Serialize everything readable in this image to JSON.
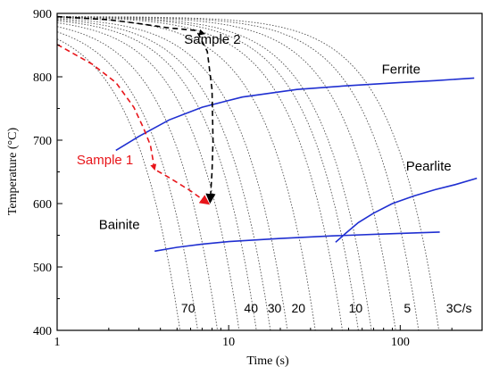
{
  "chart_data": {
    "type": "line",
    "xlabel": "Time (s)",
    "ylabel": "Temperature (°C)",
    "x_scale": "log",
    "xlim": [
      1,
      300
    ],
    "ylim": [
      400,
      900
    ],
    "x_ticks": [
      {
        "value": 1,
        "label": "1"
      },
      {
        "value": 10,
        "label": "10"
      },
      {
        "value": 100,
        "label": "100"
      }
    ],
    "y_ticks": [
      {
        "value": 400,
        "label": "400"
      },
      {
        "value": 500,
        "label": "500"
      },
      {
        "value": 600,
        "label": "600"
      },
      {
        "value": 700,
        "label": "700"
      },
      {
        "value": 800,
        "label": "800"
      },
      {
        "value": 900,
        "label": "900"
      }
    ],
    "transformation_curves": [
      {
        "name": "Ferrite",
        "color": "#1f2fd1",
        "points": [
          [
            2.2,
            684
          ],
          [
            3.0,
            706
          ],
          [
            4.5,
            732
          ],
          [
            7.0,
            752
          ],
          [
            12,
            768
          ],
          [
            25,
            780
          ],
          [
            50,
            786
          ],
          [
            100,
            791
          ],
          [
            160,
            794
          ],
          [
            270,
            798
          ]
        ]
      },
      {
        "name": "Pearlite",
        "color": "#1f2fd1",
        "points": [
          [
            42,
            539
          ],
          [
            48,
            553
          ],
          [
            57,
            570
          ],
          [
            70,
            585
          ],
          [
            90,
            600
          ],
          [
            120,
            612
          ],
          [
            160,
            622
          ],
          [
            210,
            630
          ],
          [
            280,
            640
          ]
        ]
      },
      {
        "name": "Bainite",
        "color": "#1f2fd1",
        "points": [
          [
            3.7,
            525
          ],
          [
            5,
            531
          ],
          [
            7,
            536
          ],
          [
            10,
            540
          ],
          [
            20,
            545
          ],
          [
            40,
            549
          ],
          [
            80,
            552
          ],
          [
            130,
            554
          ],
          [
            170,
            555
          ]
        ]
      }
    ],
    "cooling_curves": {
      "color": "#555555",
      "rate_labels": [
        {
          "text": "70",
          "x": 5.8
        },
        {
          "text": "40",
          "x": 13.5
        },
        {
          "text": "30",
          "x": 18.5
        },
        {
          "text": "20",
          "x": 25.5
        },
        {
          "text": "10",
          "x": 55
        },
        {
          "text": "5",
          "x": 110
        },
        {
          "text": "3C/s",
          "x": 220
        }
      ],
      "curves": [
        {
          "t_end": 5.2
        },
        {
          "t_end": 6.6
        },
        {
          "t_end": 8.6
        },
        {
          "t_end": 11.5
        },
        {
          "t_end": 14.5
        },
        {
          "t_end": 17.5
        },
        {
          "t_end": 22
        },
        {
          "t_end": 32
        },
        {
          "t_end": 46
        },
        {
          "t_end": 57
        },
        {
          "t_end": 68
        },
        {
          "t_end": 94
        },
        {
          "t_end": 128
        },
        {
          "t_end": 168
        }
      ]
    },
    "samples": [
      {
        "name": "Sample 1",
        "color": "#e8151a",
        "points": [
          [
            1.0,
            851
          ],
          [
            1.6,
            820
          ],
          [
            2.2,
            791
          ],
          [
            2.8,
            752
          ],
          [
            3.2,
            718
          ],
          [
            3.5,
            692
          ],
          [
            3.7,
            654
          ],
          [
            4.5,
            641
          ],
          [
            6.0,
            620
          ],
          [
            7.6,
            600
          ]
        ]
      },
      {
        "name": "Sample 2",
        "color": "#000000",
        "points": [
          [
            1.0,
            895
          ],
          [
            2.0,
            890
          ],
          [
            3.0,
            884
          ],
          [
            4.5,
            877
          ],
          [
            6.5,
            873
          ],
          [
            7.5,
            840
          ],
          [
            8.0,
            780
          ],
          [
            8.1,
            700
          ],
          [
            8.0,
            650
          ],
          [
            7.8,
            603
          ]
        ]
      }
    ],
    "annotations": [
      {
        "text": "Sample 2",
        "x": 5.5,
        "y": 852,
        "color": "#000000"
      },
      {
        "text": "Ferrite",
        "x": 78,
        "y": 805,
        "color": "#000000"
      },
      {
        "text": "Pearlite",
        "x": 108,
        "y": 652,
        "color": "#000000"
      },
      {
        "text": "Sample 1",
        "x": 1.3,
        "y": 662,
        "color": "#e8151a"
      },
      {
        "text": "Bainite",
        "x": 1.75,
        "y": 560,
        "color": "#000000"
      }
    ]
  }
}
